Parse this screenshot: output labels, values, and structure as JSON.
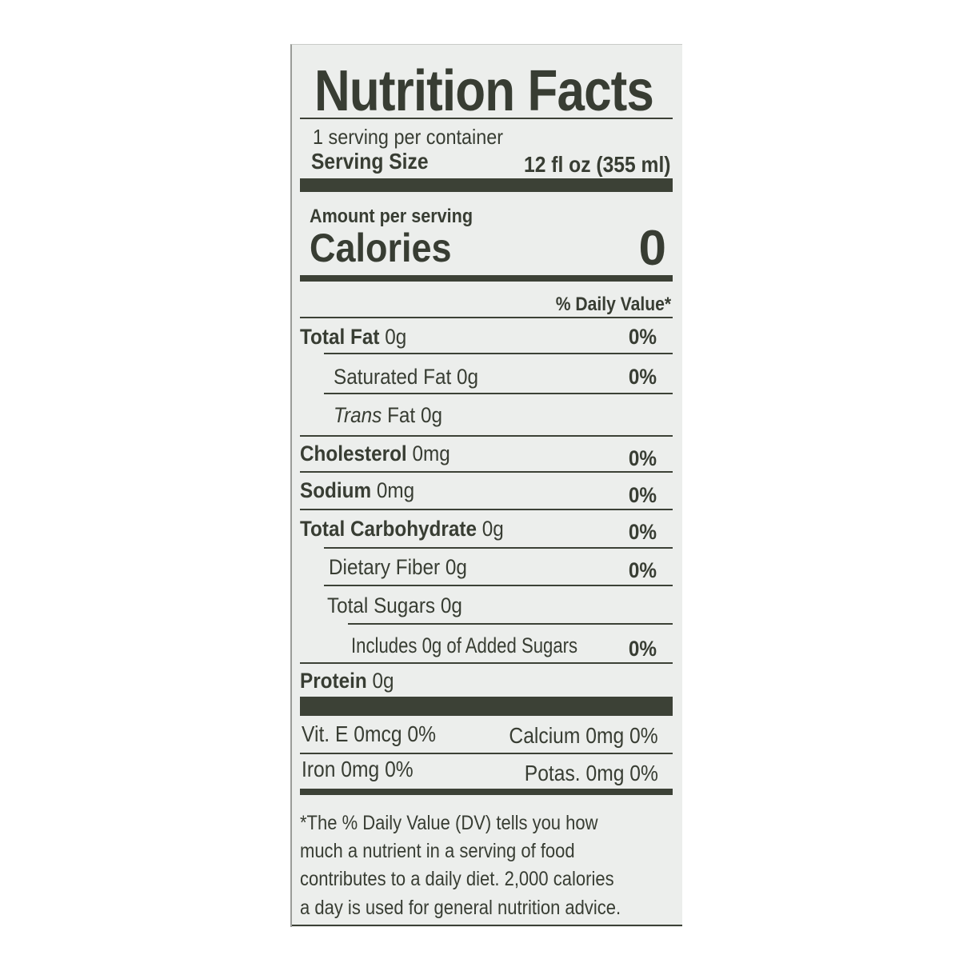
{
  "title": "Nutrition Facts",
  "servings_per_container": "1 serving per container",
  "serving_size": {
    "label": "Serving Size",
    "value": "12 fl oz (355 ml)"
  },
  "amount_per_serving": "Amount per serving",
  "calories": {
    "label": "Calories",
    "value": "0"
  },
  "daily_value_header": "% Daily Value*",
  "nutrients": [
    {
      "name": "Total Fat",
      "amount": "0g",
      "dv": "0%"
    },
    {
      "name": "Saturated Fat",
      "amount": "0g",
      "dv": "0%"
    },
    {
      "name": "Trans",
      "name_rest": "Fat",
      "amount": "0g"
    },
    {
      "name": "Cholesterol",
      "amount": "0mg",
      "dv": "0%"
    },
    {
      "name": "Sodium",
      "amount": "0mg",
      "dv": "0%"
    },
    {
      "name": "Total Carbohydrate",
      "amount": "0g",
      "dv": "0%"
    },
    {
      "name": "Dietary Fiber",
      "amount": "0g",
      "dv": "0%"
    },
    {
      "name": "Total Sugars",
      "amount": "0g"
    },
    {
      "name": "Includes 0g of Added Sugars",
      "dv": "0%"
    },
    {
      "name": "Protein",
      "amount": "0g"
    }
  ],
  "vitamins": [
    {
      "text": "Vit. E 0mcg 0%"
    },
    {
      "text": "Calcium 0mg 0%"
    },
    {
      "text": "Iron 0mg 0%"
    },
    {
      "text": "Potas. 0mg 0%"
    }
  ],
  "footnote": [
    "*The % Daily Value (DV) tells you how",
    "much a nutrient in a serving of food",
    "contributes to a daily diet. 2,000 calories",
    "a day is used for general nutrition advice."
  ],
  "colors": {
    "ink": "#383d33",
    "label_bg": "#eceeec"
  }
}
